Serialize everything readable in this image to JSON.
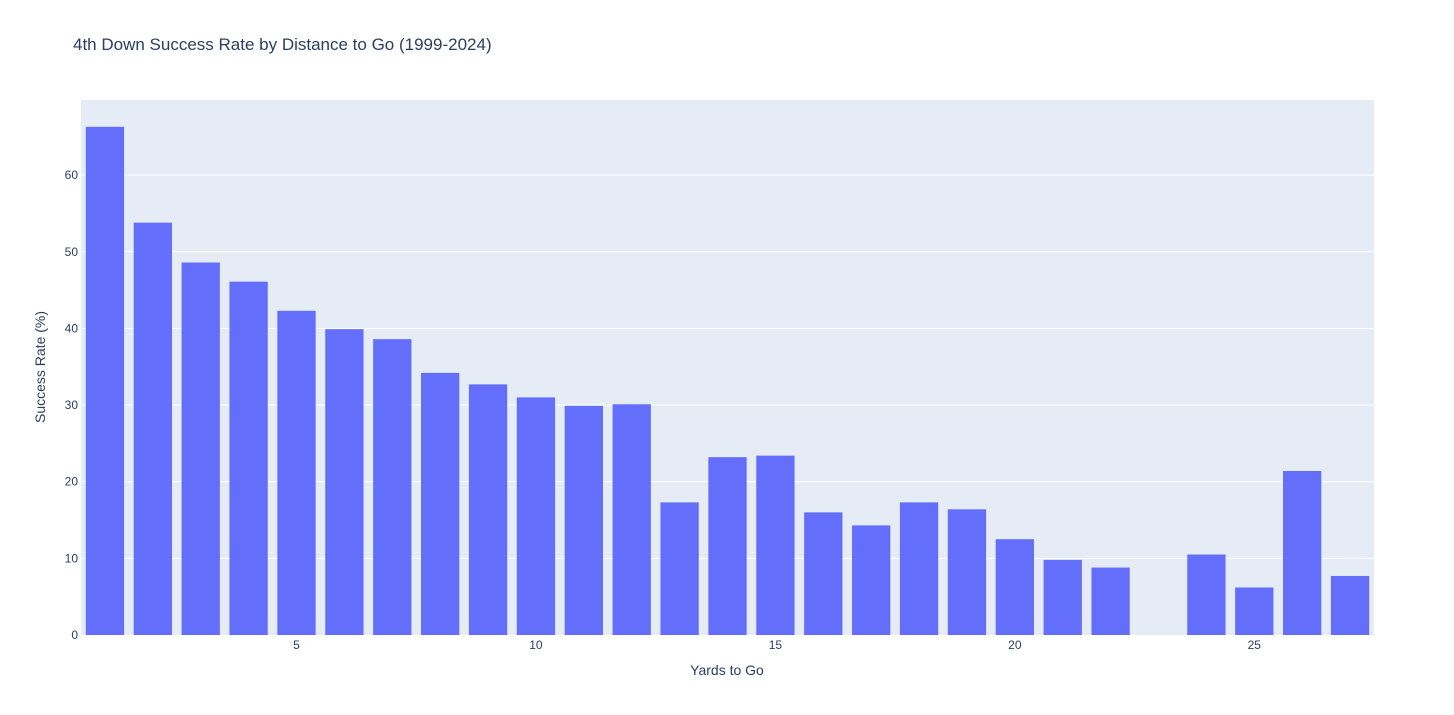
{
  "chart_data": {
    "type": "bar",
    "title": "4th Down Success Rate by Distance to Go (1999-2024)",
    "xlabel": "Yards to Go",
    "ylabel": "Success Rate (%)",
    "x": [
      1,
      2,
      3,
      4,
      5,
      6,
      7,
      8,
      9,
      10,
      11,
      12,
      13,
      14,
      15,
      16,
      17,
      18,
      19,
      20,
      21,
      22,
      23,
      24,
      25,
      26,
      27
    ],
    "values": [
      66.3,
      53.8,
      48.6,
      46.1,
      42.3,
      39.9,
      38.6,
      34.2,
      32.7,
      31.0,
      29.9,
      30.1,
      17.3,
      23.2,
      23.4,
      16.0,
      14.3,
      17.3,
      16.4,
      12.5,
      9.8,
      8.8,
      0,
      10.5,
      6.2,
      21.4,
      7.7
    ],
    "xlim": [
      0.5,
      27.5
    ],
    "ylim": [
      0,
      69.8
    ],
    "xticks": [
      5,
      10,
      15,
      20,
      25
    ],
    "yticks": [
      0,
      10,
      20,
      30,
      40,
      50,
      60
    ],
    "grid": true,
    "bar_color": "#636efa",
    "plot_bg": "#e5ecf6"
  }
}
